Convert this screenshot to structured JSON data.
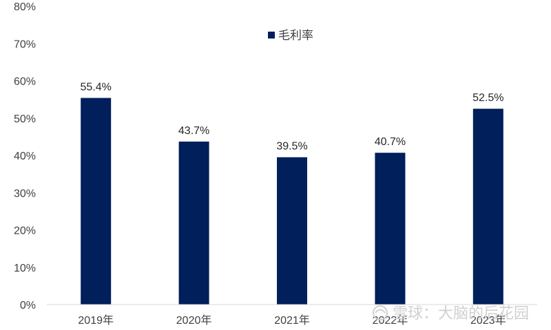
{
  "chart_data": {
    "type": "bar",
    "categories": [
      "2019年",
      "2020年",
      "2021年",
      "2022年",
      "2023年"
    ],
    "series": [
      {
        "name": "毛利率",
        "values": [
          55.4,
          43.7,
          39.5,
          40.7,
          52.5
        ],
        "color": "#001f5b"
      }
    ],
    "data_labels": [
      "55.4%",
      "43.7%",
      "39.5%",
      "40.7%",
      "52.5%"
    ],
    "ylim": [
      0,
      80
    ],
    "yticks": [
      "0%",
      "10%",
      "20%",
      "30%",
      "40%",
      "50%",
      "60%",
      "70%",
      "80%"
    ],
    "grid": false,
    "legend_position": "top-center",
    "title": "",
    "xlabel": "",
    "ylabel": ""
  },
  "watermark": {
    "text": "雪球：大脑的后花园",
    "icon": "snowball-logo-icon"
  }
}
